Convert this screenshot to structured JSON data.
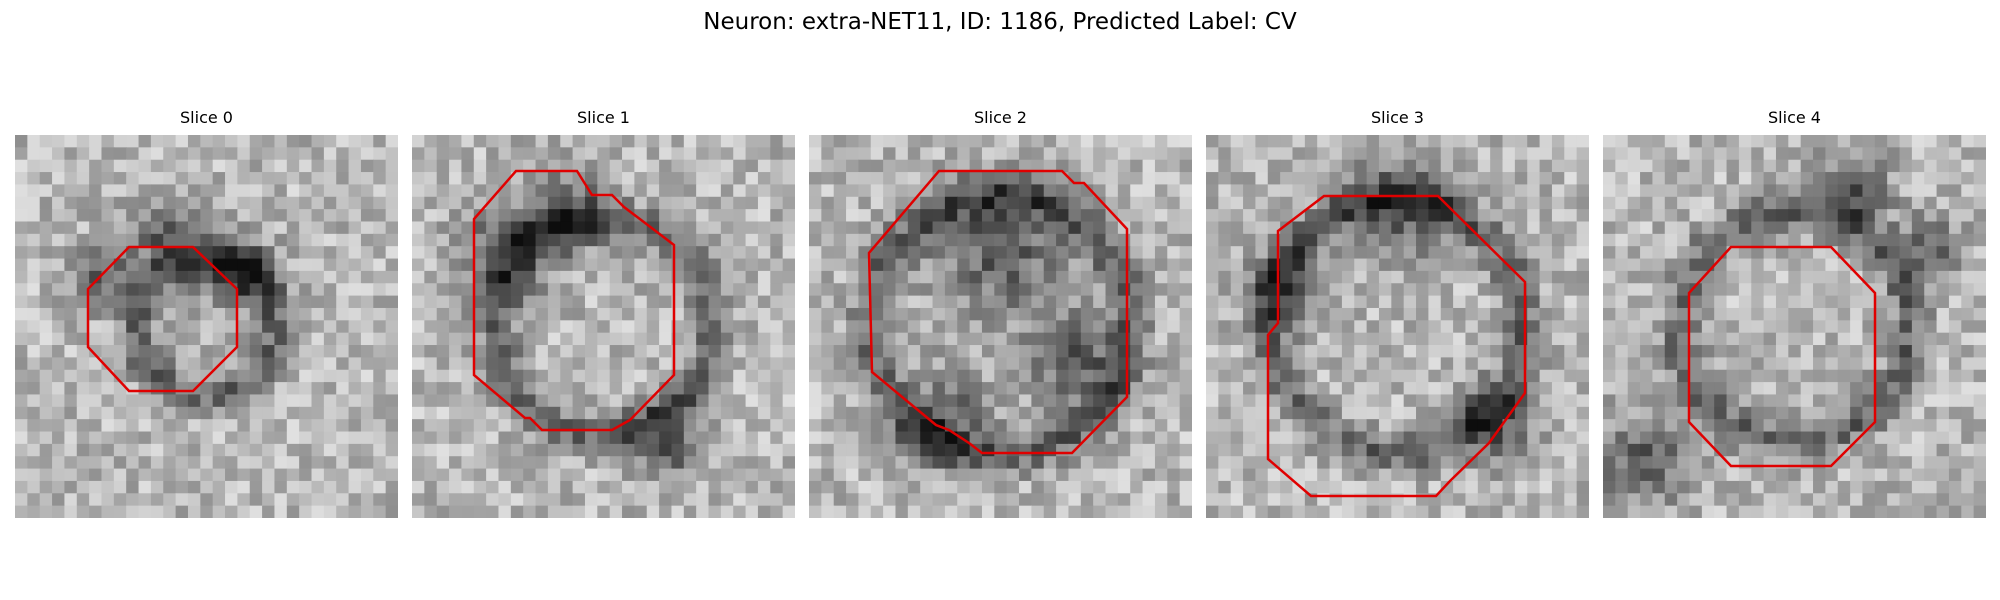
{
  "figure": {
    "suptitle": "Neuron: extra-NET11, ID: 1186, Predicted Label: CV",
    "contour_color": "#e00000",
    "colormap": "gray"
  },
  "slices": [
    {
      "title": "Slice 0",
      "seed": 11,
      "dark_blobs": [
        [
          0.4,
          0.26,
          0.09
        ],
        [
          0.58,
          0.36,
          0.1
        ],
        [
          0.23,
          0.37,
          0.08
        ]
      ],
      "ring": 0.18
    },
    {
      "title": "Slice 1",
      "seed": 23,
      "dark_blobs": [
        [
          0.24,
          0.3,
          0.12
        ],
        [
          0.67,
          0.8,
          0.1
        ],
        [
          0.4,
          0.2,
          0.1
        ]
      ],
      "ring": 0.28
    },
    {
      "title": "Slice 2",
      "seed": 37,
      "dark_blobs": [
        [
          0.5,
          0.3,
          0.18
        ],
        [
          0.35,
          0.75,
          0.12
        ],
        [
          0.7,
          0.6,
          0.12
        ]
      ],
      "ring": 0.34
    },
    {
      "title": "Slice 3",
      "seed": 41,
      "dark_blobs": [
        [
          0.5,
          0.18,
          0.14
        ],
        [
          0.2,
          0.4,
          0.1
        ],
        [
          0.75,
          0.75,
          0.1
        ]
      ],
      "ring": 0.33
    },
    {
      "title": "Slice 4",
      "seed": 53,
      "dark_blobs": [
        [
          0.1,
          0.85,
          0.12
        ],
        [
          0.65,
          0.15,
          0.1
        ],
        [
          0.85,
          0.3,
          0.08
        ]
      ],
      "ring": 0.3
    }
  ]
}
